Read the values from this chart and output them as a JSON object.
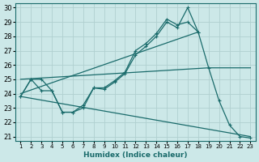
{
  "xlabel": "Humidex (Indice chaleur)",
  "background_color": "#cce8e8",
  "grid_color": "#b0d0d0",
  "line_color": "#1a6b6b",
  "xlim": [
    0.5,
    23.5
  ],
  "ylim": [
    20.7,
    30.3
  ],
  "xticks": [
    1,
    2,
    3,
    4,
    5,
    6,
    7,
    8,
    9,
    10,
    11,
    12,
    13,
    14,
    15,
    16,
    17,
    18,
    19,
    20,
    21,
    22,
    23
  ],
  "yticks": [
    21,
    22,
    23,
    24,
    25,
    26,
    27,
    28,
    29,
    30
  ],
  "line1_x": [
    1,
    2,
    3,
    4,
    5,
    6,
    7,
    8,
    9,
    10,
    11,
    12,
    13,
    14,
    15,
    16,
    17,
    18
  ],
  "line1_y": [
    23.8,
    25.0,
    24.2,
    24.2,
    22.7,
    22.7,
    23.2,
    24.4,
    24.3,
    24.8,
    25.4,
    26.7,
    27.3,
    28.0,
    29.0,
    28.6,
    30.0,
    28.3
  ],
  "line2_x": [
    1,
    2,
    3,
    4,
    5,
    6,
    7,
    8,
    9,
    10,
    11,
    12,
    13,
    14,
    15,
    16,
    17,
    18,
    19,
    20,
    21,
    22,
    23
  ],
  "line2_y": [
    23.8,
    25.0,
    25.0,
    24.2,
    22.7,
    22.7,
    23.0,
    24.4,
    24.4,
    24.9,
    25.5,
    27.0,
    27.5,
    28.2,
    29.2,
    28.8,
    29.0,
    28.3,
    25.8,
    23.5,
    21.8,
    21.0,
    20.9
  ],
  "line3_x": [
    1,
    18
  ],
  "line3_y": [
    24.0,
    28.3
  ],
  "line4_x": [
    1,
    19,
    20,
    22,
    23
  ],
  "line4_y": [
    25.0,
    25.8,
    25.8,
    25.8,
    25.8
  ],
  "line5_x": [
    1,
    23
  ],
  "line5_y": [
    23.8,
    21.0
  ]
}
